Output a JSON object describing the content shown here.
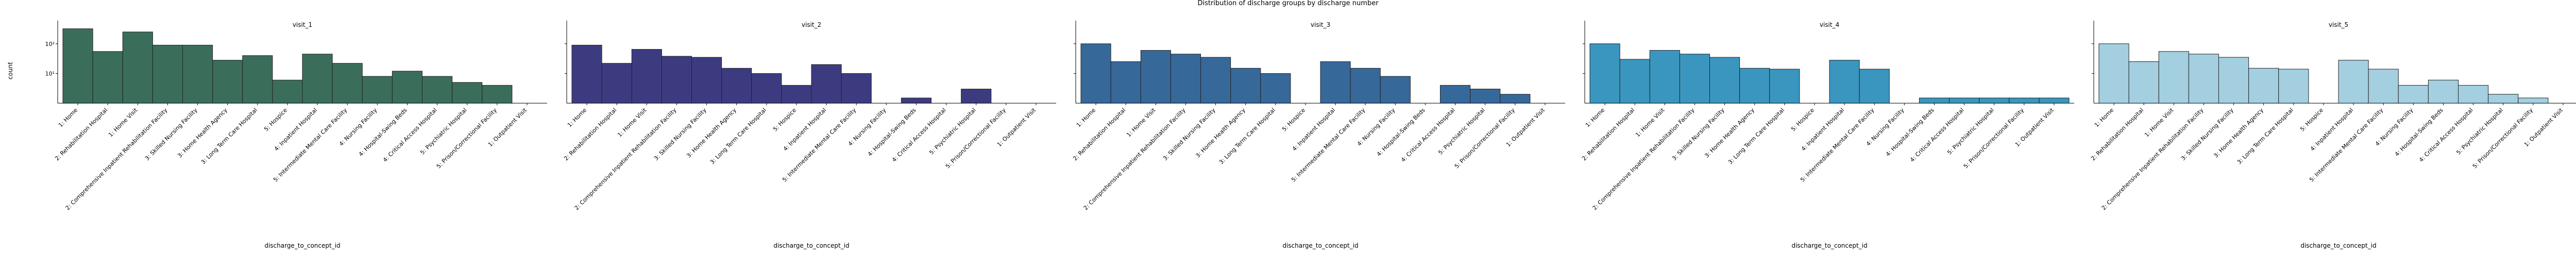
{
  "figure": {
    "suptitle": "Distribution of discharge groups by discharge number"
  },
  "chart_data": {
    "type": "bar",
    "yscale": "log",
    "ylabel": "count",
    "xlabel": "discharge_to_concept_id",
    "ylim": [
      1,
      600
    ],
    "yticks": [
      {
        "value": 10,
        "label": "10¹"
      },
      {
        "value": 100,
        "label": "10²"
      }
    ],
    "categories": [
      "1: Home",
      "2: Rehabilitation Hospital",
      "1: Home Visit",
      "2: Comprehensive Inpatient Rehabilitation Facility",
      "3: Skilled Nursing Facility",
      "3: Home Health Agency",
      "3: Long Term Care Hospital",
      "5: Hospice",
      "4: Inpatient Hospital",
      "5: Intermediate Mental Care Facility",
      "4: Nursing Facility",
      "4: Hospital-Swing Beds",
      "4: Critical Access Hospital",
      "5: Psychiatric Hospital",
      "5: Prison/Correctional Facility",
      "1: Outpatient Visit"
    ],
    "panels": [
      {
        "title": "visit_1",
        "color": "#3a6e5b",
        "values": [
          320,
          55,
          250,
          90,
          90,
          28,
          40,
          6,
          45,
          22,
          8,
          12,
          8,
          5,
          4,
          0
        ]
      },
      {
        "title": "visit_2",
        "color": "#3d3b80",
        "values": [
          90,
          22,
          65,
          38,
          35,
          15,
          10,
          4,
          20,
          10,
          0,
          1.5,
          0,
          3,
          0,
          0
        ]
      },
      {
        "title": "visit_3",
        "color": "#37689a",
        "values": [
          100,
          25,
          60,
          45,
          35,
          15,
          10,
          0,
          25,
          15,
          8,
          0,
          4,
          3,
          2,
          0
        ]
      },
      {
        "title": "visit_4",
        "color": "#3a96bf",
        "values": [
          100,
          30,
          60,
          45,
          35,
          15,
          14,
          0,
          28,
          14,
          0,
          1.5,
          1.5,
          1.5,
          1.5,
          1.5
        ]
      },
      {
        "title": "visit_5",
        "color": "#a3cfe0",
        "values": [
          100,
          25,
          55,
          45,
          35,
          15,
          14,
          0,
          28,
          14,
          4,
          6,
          4,
          2,
          1.5,
          0
        ]
      }
    ]
  }
}
